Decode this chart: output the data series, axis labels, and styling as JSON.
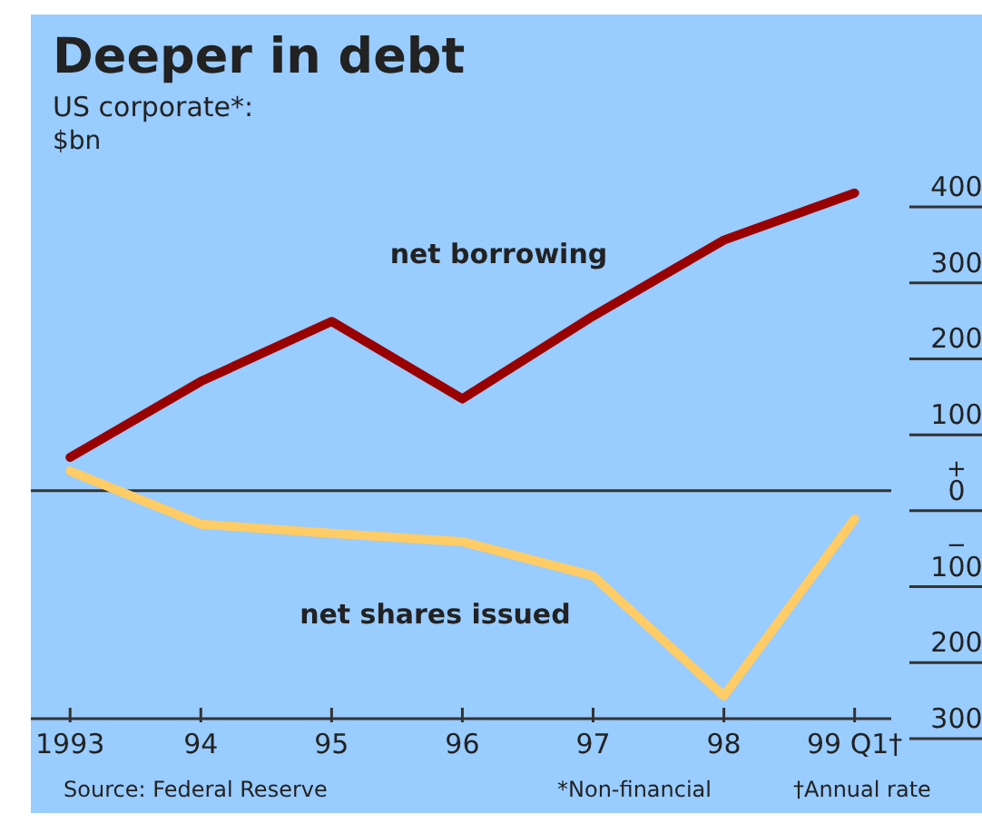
{
  "chart_data": {
    "type": "line",
    "title": "Deeper in debt",
    "subtitle": "US corporate*:",
    "ylabel": "$bn",
    "categories": [
      "1993",
      "94",
      "95",
      "96",
      "97",
      "98",
      "99 Q1†"
    ],
    "series": [
      {
        "name": "net borrowing",
        "color": "#990000",
        "values": [
          44,
          144,
          223,
          121,
          230,
          330,
          392
        ]
      },
      {
        "name": "net shares issued",
        "color": "#ffcc66",
        "values": [
          26,
          -44,
          -56,
          -67,
          -112,
          -270,
          -37
        ]
      }
    ],
    "ylim": [
      -300,
      400
    ],
    "yticks": [
      400,
      300,
      200,
      100,
      {
        "value": 0,
        "label": "+\n0"
      },
      {
        "value": -100,
        "label": "−\n100"
      },
      {
        "value": -200,
        "label": "200"
      },
      {
        "value": -300,
        "label": "300"
      }
    ],
    "ref_lines": [
      {
        "axis": "y",
        "value": 0,
        "color": "#333333"
      }
    ],
    "marker": "none",
    "line_style": "solid",
    "grid": false,
    "annotations": [
      "Source: Federal Reserve",
      "*Non-financial",
      "†Annual rate"
    ]
  }
}
